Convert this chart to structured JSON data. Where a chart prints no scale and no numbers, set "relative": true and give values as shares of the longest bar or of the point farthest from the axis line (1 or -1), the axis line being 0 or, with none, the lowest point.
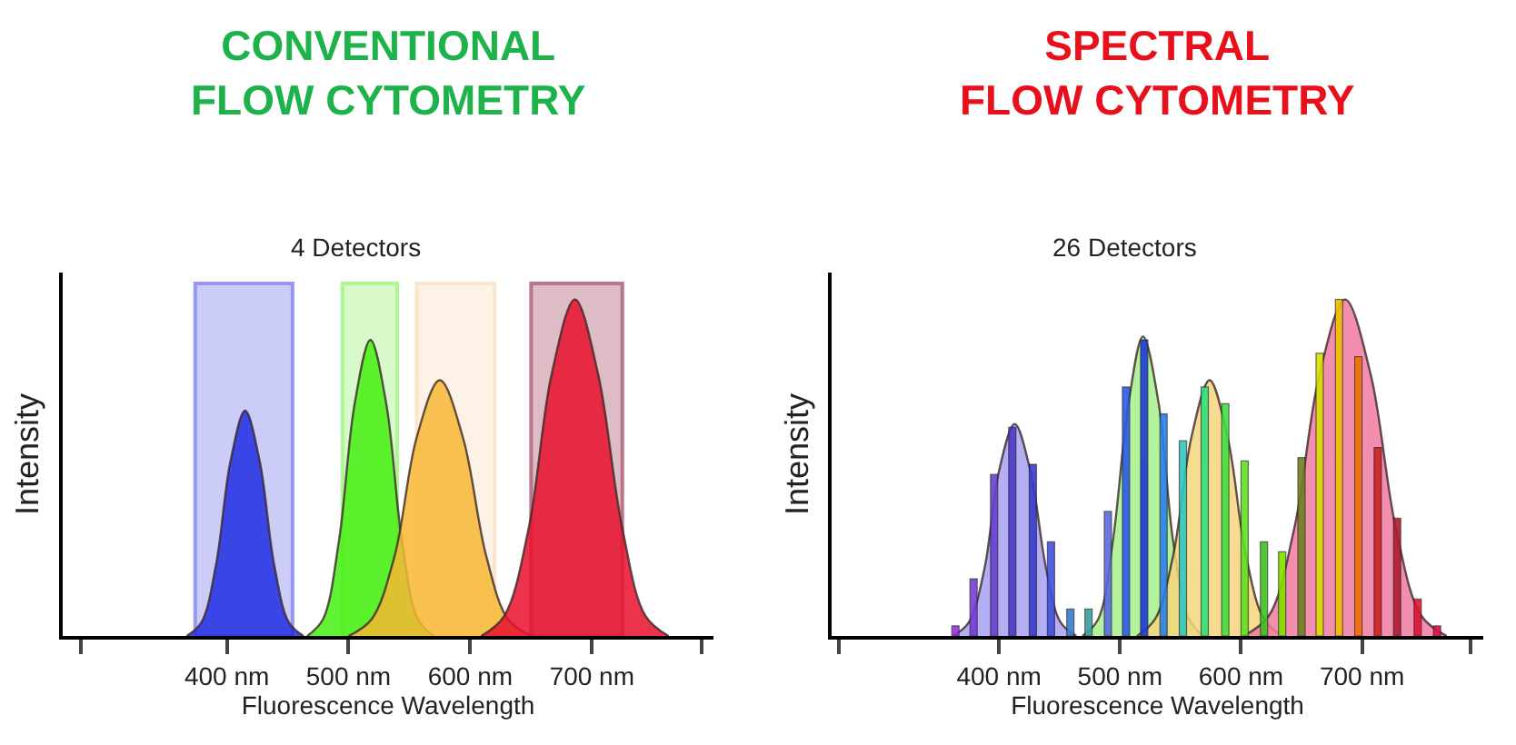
{
  "chart_data": [
    {
      "type": "area",
      "title": "CONVENTIONAL\nFLOW CYTOMETRY",
      "subtitle": "4 Detectors",
      "xlabel": "Fluorescence Wavelength",
      "ylabel": "Intensity",
      "relative": true,
      "xlim": [
        265,
        800
      ],
      "xticks": [
        {
          "value": 280,
          "label": null
        },
        {
          "value": 400,
          "label": "400 nm"
        },
        {
          "value": 500,
          "label": "500 nm"
        },
        {
          "value": 600,
          "label": "600 nm"
        },
        {
          "value": 700,
          "label": "700 nm"
        },
        {
          "value": 790,
          "label": null
        }
      ],
      "bands": [
        {
          "axis": "x",
          "from": 374,
          "to": 454,
          "label": null,
          "color": "#8f8ff0"
        },
        {
          "axis": "x",
          "from": 495,
          "to": 540,
          "label": null,
          "color": "#a9f58a"
        },
        {
          "axis": "x",
          "from": 556,
          "to": 620,
          "label": null,
          "color": "#fbe3c8"
        },
        {
          "axis": "x",
          "from": 650,
          "to": 725,
          "label": null,
          "color": "#b46a80"
        }
      ],
      "series": [
        {
          "color": "#1f2de0",
          "x": [
            367,
            379,
            391,
            403,
            415,
            427,
            439,
            451,
            463
          ],
          "values": [
            0,
            0.04,
            0.21,
            0.52,
            0.67,
            0.52,
            0.21,
            0.04,
            0
          ]
        },
        {
          "color": "#45ee12",
          "x": [
            466,
            479,
            492,
            505,
            518,
            531,
            544,
            557,
            570
          ],
          "values": [
            0,
            0.05,
            0.28,
            0.69,
            0.88,
            0.69,
            0.28,
            0.05,
            0
          ]
        },
        {
          "color": "#f7b733",
          "x": [
            500,
            519,
            538,
            556,
            575,
            594,
            613,
            631,
            650
          ],
          "values": [
            0,
            0.05,
            0.24,
            0.59,
            0.76,
            0.59,
            0.24,
            0.05,
            0
          ]
        },
        {
          "color": "#e8102d",
          "x": [
            609,
            628,
            648,
            667,
            686,
            705,
            725,
            744,
            763
          ],
          "values": [
            0,
            0.06,
            0.32,
            0.78,
            1,
            0.78,
            0.32,
            0.06,
            0
          ]
        }
      ]
    },
    {
      "type": "area",
      "title": "SPECTRAL\nFLOW CYTOMETRY",
      "subtitle": "26 Detectors",
      "xlabel": "Fluorescence Wavelength",
      "ylabel": "Intensity",
      "relative": true,
      "xlim": [
        262,
        800
      ],
      "xticks": [
        {
          "value": 268,
          "label": null
        },
        {
          "value": 400,
          "label": "400 nm"
        },
        {
          "value": 500,
          "label": "500 nm"
        },
        {
          "value": 600,
          "label": "600 nm"
        },
        {
          "value": 700,
          "label": "700 nm"
        },
        {
          "value": 790,
          "label": null
        }
      ],
      "series": [
        {
          "color": "#a7a0f0",
          "x": [
            362,
            375,
            388,
            400,
            413,
            426,
            439,
            451,
            464
          ],
          "values": [
            0,
            0.04,
            0.2,
            0.49,
            0.63,
            0.49,
            0.2,
            0.04,
            0
          ]
        },
        {
          "color": "#a8f08c",
          "x": [
            469,
            482,
            494,
            507,
            519,
            532,
            544,
            557,
            569
          ],
          "values": [
            0,
            0.05,
            0.28,
            0.69,
            0.89,
            0.69,
            0.28,
            0.05,
            0
          ]
        },
        {
          "color": "#f5d67c",
          "x": [
            514,
            529,
            544,
            559,
            574,
            589,
            604,
            619,
            634
          ],
          "values": [
            0,
            0.05,
            0.24,
            0.59,
            0.76,
            0.59,
            0.24,
            0.05,
            0
          ]
        },
        {
          "color": "#f07aa0",
          "x": [
            602,
            623,
            644,
            665,
            686,
            707,
            728,
            749,
            770
          ],
          "values": [
            0,
            0.06,
            0.32,
            0.78,
            1,
            0.78,
            0.32,
            0.06,
            0
          ]
        },
        {
          "type": "bar",
          "x": [
            364,
            379,
            396,
            411,
            428,
            443,
            459,
            474,
            490,
            505,
            520,
            536,
            552,
            570,
            587,
            603,
            619,
            634,
            650,
            665,
            681,
            697,
            713,
            729,
            746,
            762
          ],
          "values": [
            0.03,
            0.17,
            0.48,
            0.62,
            0.51,
            0.28,
            0.08,
            0.08,
            0.37,
            0.74,
            0.88,
            0.66,
            0.58,
            0.74,
            0.69,
            0.52,
            0.28,
            0.25,
            0.53,
            0.84,
            1.0,
            0.83,
            0.56,
            0.35,
            0.11,
            0.03
          ],
          "colors": [
            "#9b30e0",
            "#7a3ad8",
            "#6a40d0",
            "#4a3ac8",
            "#3a3ad0",
            "#4050e0",
            "#3a7ad0",
            "#3aa0a0",
            "#5a6ae0",
            "#2a5ae8",
            "#1a3ad8",
            "#2a80e8",
            "#30c8c0",
            "#30e080",
            "#40e040",
            "#60e020",
            "#40c020",
            "#80e000",
            "#708020",
            "#d8e000",
            "#f0c000",
            "#f07000",
            "#d02020",
            "#b01a30",
            "#e01030",
            "#e01040"
          ]
        }
      ]
    }
  ]
}
